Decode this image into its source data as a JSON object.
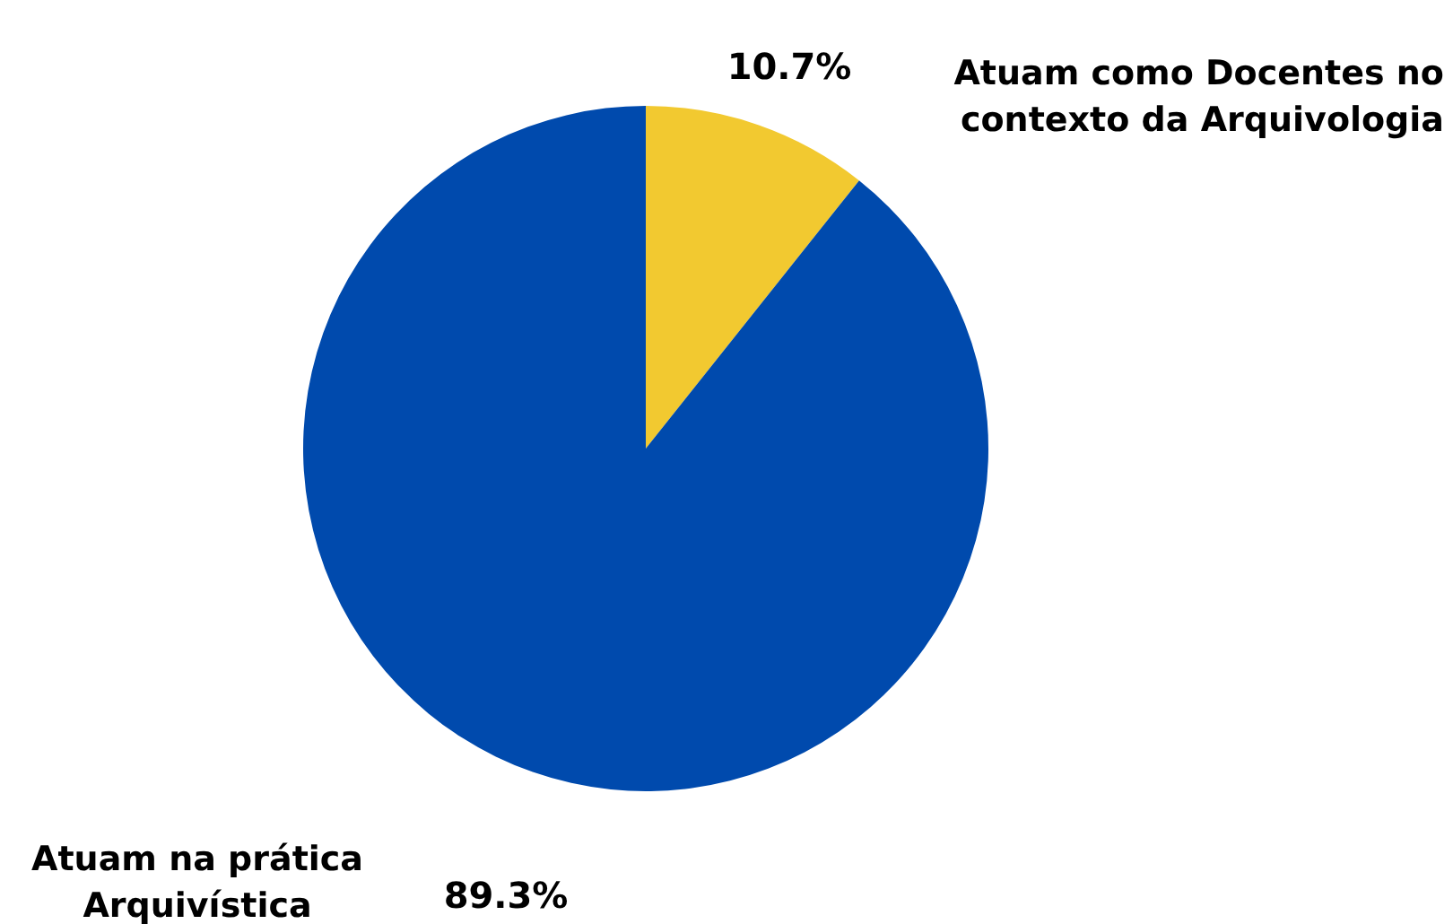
{
  "chart_data": {
    "type": "pie",
    "categories": [
      "Atuam como Docentes no contexto da Arquivologia",
      "Atuam na prática Arquivística"
    ],
    "values": [
      10.7,
      89.3
    ],
    "colors": [
      "#f2c930",
      "#004aad"
    ],
    "value_labels": [
      "10.7%",
      "89.3%"
    ],
    "legend": false
  }
}
